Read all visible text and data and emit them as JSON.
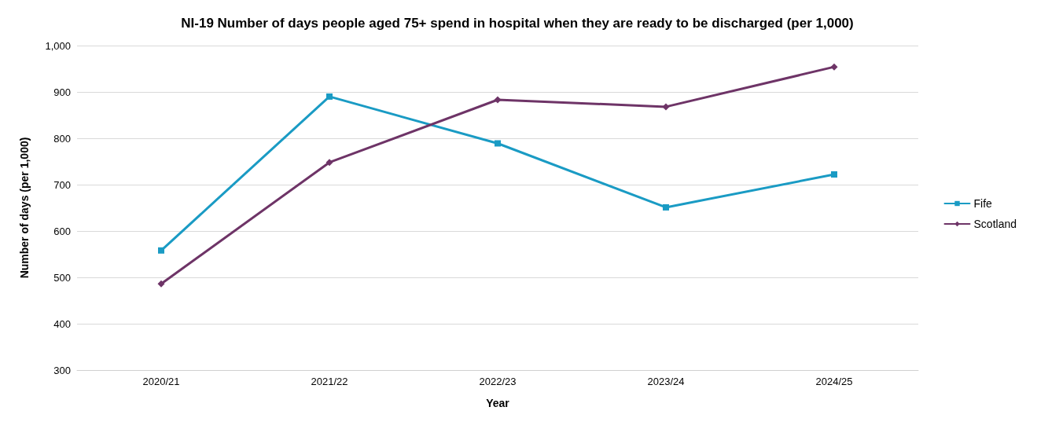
{
  "chart_data": {
    "type": "line",
    "title": "NI-19 Number of days people aged 75+ spend in hospital when they are ready to be discharged (per 1,000)",
    "xlabel": "Year",
    "ylabel": "Number of days (per 1,000)",
    "categories": [
      "2020/21",
      "2021/22",
      "2022/23",
      "2023/24",
      "2024/25"
    ],
    "series": [
      {
        "name": "Fife",
        "color": "#1a9bc4",
        "marker": "square",
        "values": [
          558,
          890,
          789,
          651,
          722
        ]
      },
      {
        "name": "Scotland",
        "color": "#6e3467",
        "marker": "diamond",
        "values": [
          486,
          748,
          883,
          868,
          954
        ]
      }
    ],
    "ylim": [
      300,
      1000
    ],
    "yticks": [
      300,
      400,
      500,
      600,
      700,
      800,
      900,
      {
        "value": 1000,
        "label": "1,000"
      }
    ],
    "grid": "y",
    "legend": "right",
    "line_style": "solid"
  }
}
